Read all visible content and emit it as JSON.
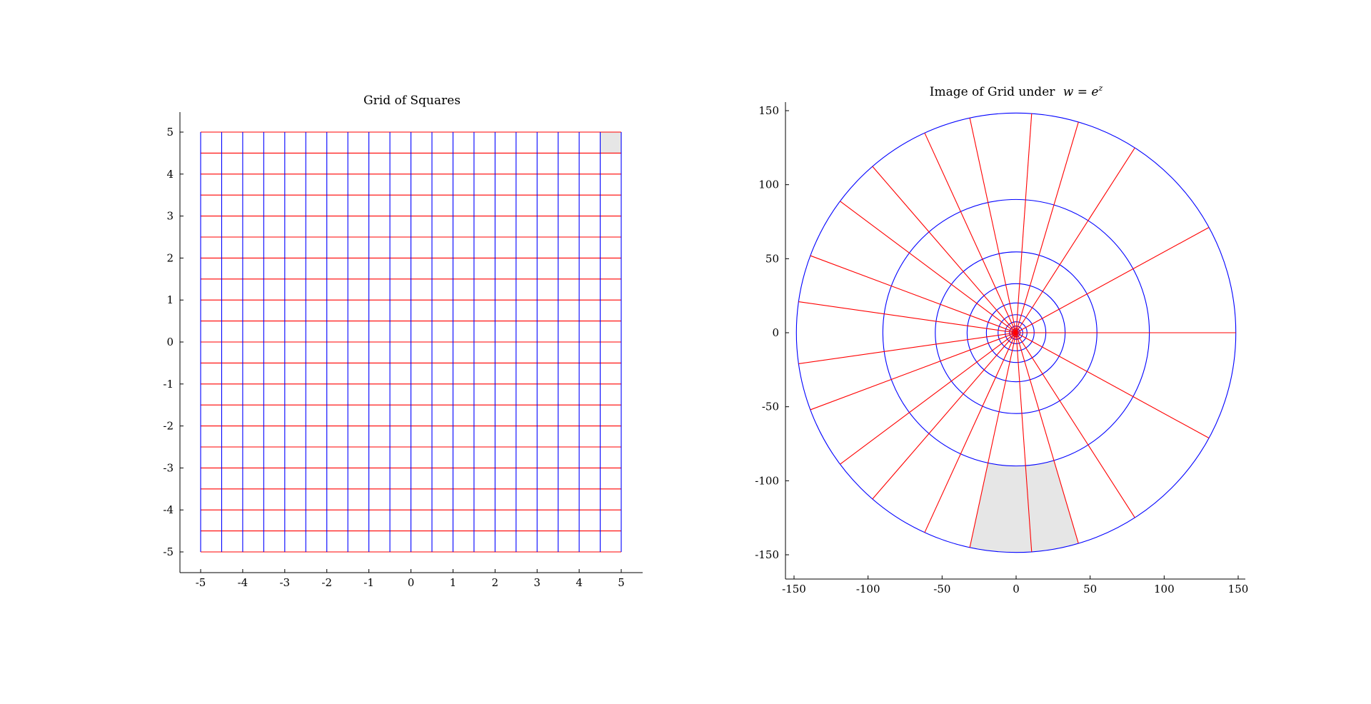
{
  "chart_data": [
    {
      "type": "line",
      "title": "Grid of Squares",
      "xlabel": "",
      "ylabel": "",
      "xlim": [
        -5.5,
        5.5
      ],
      "ylim": [
        -5.5,
        5.5
      ],
      "xticks": [
        "-5",
        "-4",
        "-3",
        "-2",
        "-1",
        "0",
        "1",
        "2",
        "3",
        "4",
        "5"
      ],
      "yticks": [
        "5",
        "4",
        "3",
        "2",
        "1",
        "0",
        "-1",
        "-2",
        "-3",
        "-4",
        "-5"
      ],
      "grid_step": 0.5,
      "grid_range": [
        -5,
        5
      ],
      "series": [
        {
          "kind": "vertical-lines",
          "color": "#0000ff",
          "x_values": [
            -5,
            -4.5,
            -4,
            -3.5,
            -3,
            -2.5,
            -2,
            -1.5,
            -1,
            -0.5,
            0,
            0.5,
            1,
            1.5,
            2,
            2.5,
            3,
            3.5,
            4,
            4.5,
            5
          ],
          "y_range": [
            -5,
            5
          ]
        },
        {
          "kind": "horizontal-lines",
          "color": "#ff0000",
          "y_values": [
            -5,
            -4.5,
            -4,
            -3.5,
            -3,
            -2.5,
            -2,
            -1.5,
            -1,
            -0.5,
            0,
            0.5,
            1,
            1.5,
            2,
            2.5,
            3,
            3.5,
            4,
            4.5,
            5
          ],
          "x_range": [
            -5,
            5
          ]
        }
      ],
      "highlight": {
        "x_range": [
          4.5,
          5
        ],
        "y_range": [
          4.5,
          5
        ],
        "fill": "#e6e6e6"
      },
      "grid": false
    },
    {
      "type": "line",
      "title": "Image of Grid under",
      "title_math": "w = e^z",
      "xlabel": "",
      "ylabel": "",
      "xlim": [
        -152,
        152
      ],
      "ylim": [
        -167,
        155
      ],
      "xticks": [
        "-150",
        "-100",
        "-50",
        "0",
        "50",
        "100",
        "150"
      ],
      "yticks": [
        "150",
        "100",
        "50",
        "0",
        "-50",
        "-100",
        "-150"
      ],
      "mapping": "w = e^z",
      "series": [
        {
          "kind": "circles (images of vertical lines)",
          "color": "#0000ff",
          "source_x_values": [
            -5,
            -4.5,
            -4,
            -3.5,
            -3,
            -2.5,
            -2,
            -1.5,
            -1,
            -0.5,
            0,
            0.5,
            1,
            1.5,
            2,
            2.5,
            3,
            3.5,
            4,
            4.5,
            5
          ]
        },
        {
          "kind": "rays (images of horizontal lines)",
          "color": "#ff0000",
          "source_y_values": [
            -5,
            -4.5,
            -4,
            -3.5,
            -3,
            -2.5,
            -2,
            -1.5,
            -1,
            -0.5,
            0,
            0.5,
            1,
            1.5,
            2,
            2.5,
            3,
            3.5,
            4,
            4.5,
            5
          ],
          "source_x_range": [
            -5,
            5
          ]
        }
      ],
      "highlight": {
        "source_x_range": [
          4.5,
          5
        ],
        "source_y_range": [
          4.5,
          5
        ],
        "fill": "#e6e6e6"
      },
      "grid": false
    }
  ]
}
